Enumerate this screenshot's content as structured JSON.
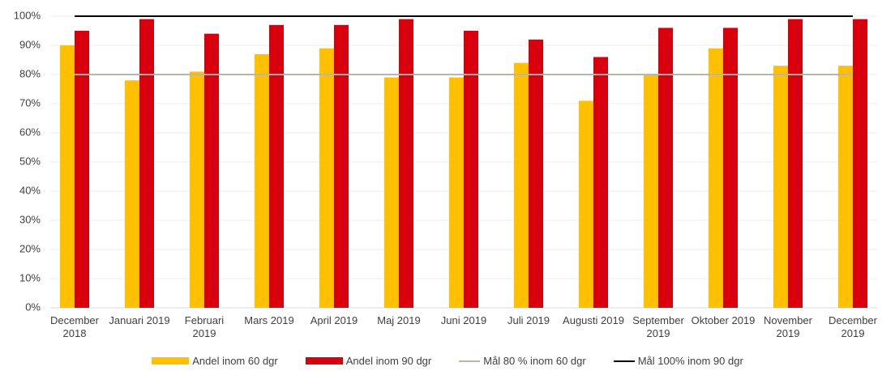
{
  "chart_data": {
    "type": "bar",
    "categories": [
      "December 2018",
      "Januari 2019",
      "Februari 2019",
      "Mars 2019",
      "April 2019",
      "Maj 2019",
      "Juni 2019",
      "Juli 2019",
      "Augusti 2019",
      "September 2019",
      "Oktober 2019",
      "November 2019",
      "December 2019"
    ],
    "series": [
      {
        "name": "Andel inom 60 dgr",
        "type": "bar",
        "color": "#ffc000",
        "values": [
          90,
          78,
          81,
          87,
          89,
          79,
          79,
          84,
          71,
          80,
          89,
          83,
          83
        ]
      },
      {
        "name": "Andel inom 90 dgr",
        "type": "bar",
        "color": "#d9000d",
        "values": [
          95,
          99,
          94,
          97,
          97,
          99,
          95,
          92,
          86,
          96,
          96,
          99,
          99
        ]
      },
      {
        "name": "Mål 80 % inom 60 dgr",
        "type": "line",
        "color": "#bcb3ab",
        "values": [
          80,
          80,
          80,
          80,
          80,
          80,
          80,
          80,
          80,
          80,
          80,
          80,
          80
        ]
      },
      {
        "name": "Mål 100% inom 90 dgr",
        "type": "line",
        "color": "#000000",
        "values": [
          100,
          100,
          100,
          100,
          100,
          100,
          100,
          100,
          100,
          100,
          100,
          100,
          100
        ]
      }
    ],
    "ylim": [
      0,
      100
    ],
    "yticks": [
      {
        "value": 0,
        "label": "0%"
      },
      {
        "value": 10,
        "label": "10%"
      },
      {
        "value": 20,
        "label": "20%"
      },
      {
        "value": 30,
        "label": "30%"
      },
      {
        "value": 40,
        "label": "40%"
      },
      {
        "value": 50,
        "label": "50%"
      },
      {
        "value": 60,
        "label": "60%"
      },
      {
        "value": 70,
        "label": "70%"
      },
      {
        "value": 80,
        "label": "80%"
      },
      {
        "value": 90,
        "label": "90%"
      },
      {
        "value": 100,
        "label": "100%"
      }
    ],
    "grid": true,
    "legend": "bottom"
  }
}
